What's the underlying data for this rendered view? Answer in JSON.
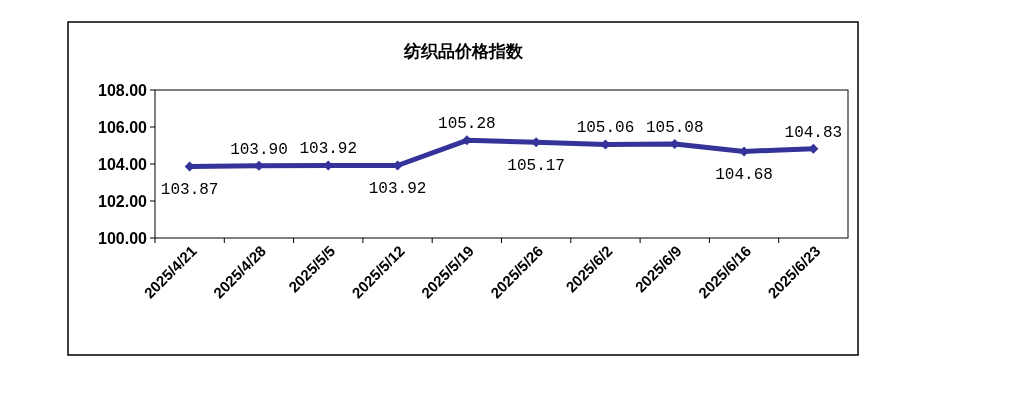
{
  "chart_data": {
    "type": "line",
    "title": "纺织品价格指数",
    "categories": [
      "2025/4/21",
      "2025/4/28",
      "2025/5/5",
      "2025/5/12",
      "2025/5/19",
      "2025/5/26",
      "2025/6/2",
      "2025/6/9",
      "2025/6/16",
      "2025/6/23"
    ],
    "series": [
      {
        "color": "#333399",
        "values": [
          103.87,
          103.9,
          103.92,
          103.92,
          105.28,
          105.17,
          105.06,
          105.08,
          104.68,
          104.83
        ],
        "value_labels": [
          "103.87",
          "103.90",
          "103.92",
          "103.92",
          "105.28",
          "105.17",
          "105.06",
          "105.08",
          "104.68",
          "104.83"
        ]
      }
    ],
    "ylim": [
      100,
      108
    ],
    "yticks": [
      {
        "value": 100,
        "label": "100.00"
      },
      {
        "value": 102,
        "label": "102.00"
      },
      {
        "value": 104,
        "label": "104.00"
      },
      {
        "value": 106,
        "label": "106.00"
      },
      {
        "value": 108,
        "label": "108.00"
      }
    ],
    "marker": "diamond",
    "line_style": "solid",
    "grid": false
  }
}
